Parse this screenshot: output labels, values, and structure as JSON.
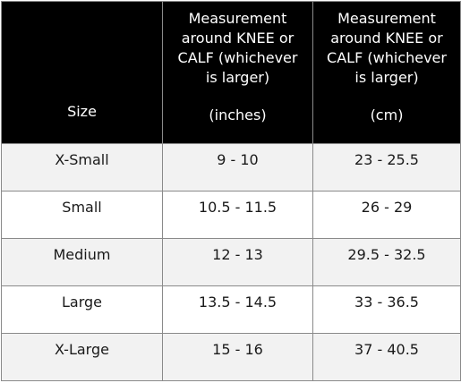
{
  "header": {
    "size_label": "Size",
    "inches_lines": [
      "Measurement",
      "around KNEE or",
      "CALF (whichever",
      "is larger)"
    ],
    "inches_unit": "(inches)",
    "cm_lines": [
      "Measurement",
      "around KNEE or",
      "CALF (whichever",
      "is larger)"
    ],
    "cm_unit": "(cm)"
  },
  "rows": [
    {
      "size": "X-Small",
      "inches": "9 - 10",
      "cm": "23 - 25.5"
    },
    {
      "size": "Small",
      "inches": "10.5 - 11.5",
      "cm": "26 - 29"
    },
    {
      "size": "Medium",
      "inches": "12 - 13",
      "cm": "29.5 - 32.5"
    },
    {
      "size": "Large",
      "inches": "13.5 - 14.5",
      "cm": "33 - 36.5"
    },
    {
      "size": "X-Large",
      "inches": "15 - 16",
      "cm": "37 - 40.5"
    }
  ]
}
